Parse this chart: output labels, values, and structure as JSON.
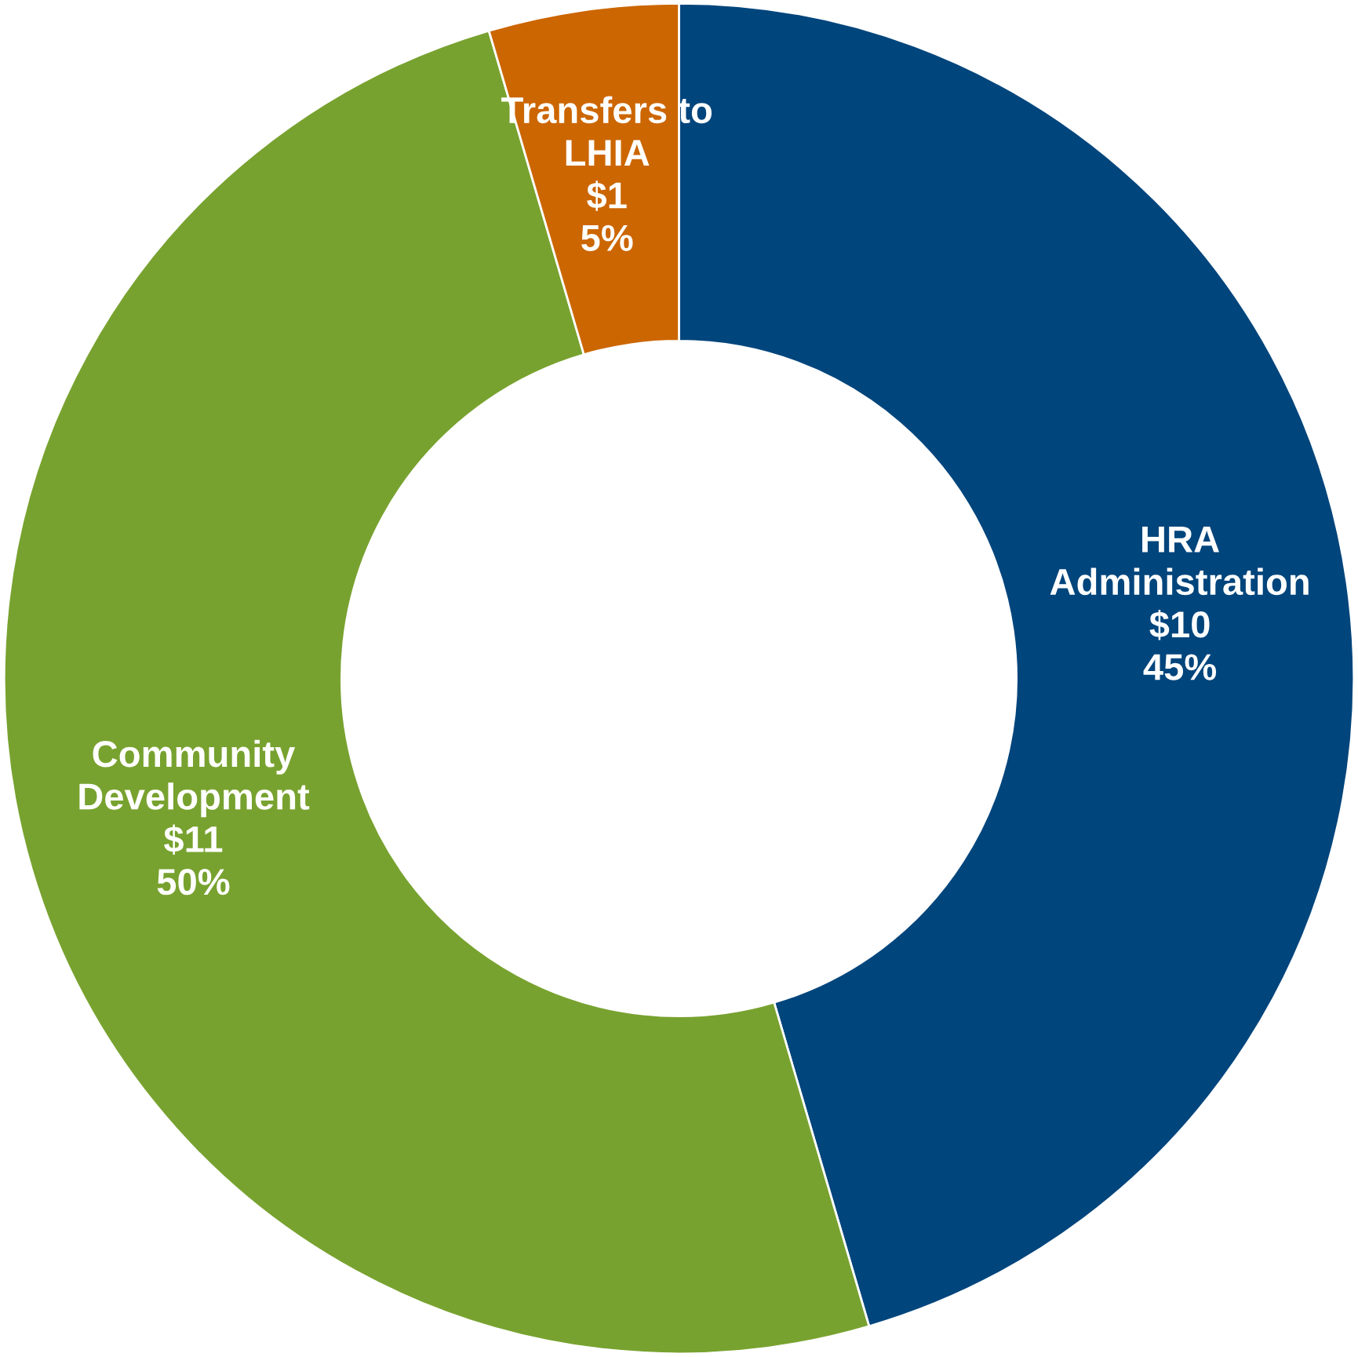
{
  "chart_data": {
    "type": "donut",
    "categories": [
      "HRA\nAdministration",
      "Community\nDevelopment",
      "Transfers to\nLHIA"
    ],
    "values": [
      10,
      11,
      1
    ],
    "value_labels": [
      "$10\n45%",
      "$11\n50%",
      "$1\n5%"
    ],
    "colors": [
      "#00457c",
      "#78a22f",
      "#cc6600"
    ],
    "legend": false
  }
}
